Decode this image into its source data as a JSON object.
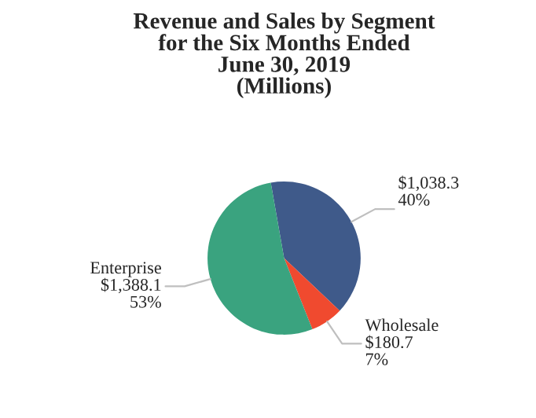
{
  "chart_data": {
    "type": "pie",
    "title": "Revenue and Sales by Segment\nfor the Six Months Ended\nJune 30, 2019\n(Millions)",
    "categories": [
      null,
      "Wholesale",
      "Enterprise"
    ],
    "values": [
      1038.3,
      180.7,
      1388.1
    ],
    "value_labels": [
      "$1,038.3\n40%",
      "$180.7\n7%",
      "$1,388.1\n53%"
    ],
    "colors": [
      "#3f5a8a",
      "#f04a2f",
      "#3aa37f"
    ],
    "legend": false
  }
}
